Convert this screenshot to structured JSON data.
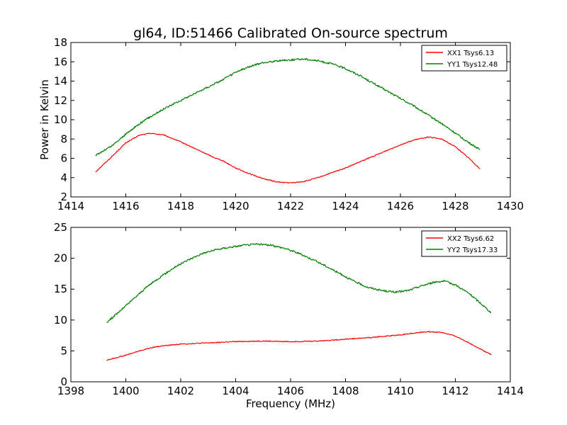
{
  "chart_data": [
    {
      "type": "line",
      "title": "gl64, ID:51466 Calibrated On-source spectrum",
      "xlabel": "",
      "ylabel": "Power in Kelvin",
      "xlim": [
        1414,
        1430
      ],
      "ylim": [
        2,
        18
      ],
      "xticks": [
        1414,
        1416,
        1418,
        1420,
        1422,
        1424,
        1426,
        1428,
        1430
      ],
      "yticks": [
        2,
        4,
        6,
        8,
        10,
        12,
        14,
        16,
        18
      ],
      "grid": false,
      "legend_position": "top-right",
      "series": [
        {
          "name": "XX1 Tsys6.13",
          "color": "#ff0000",
          "x": [
            1414.9,
            1415.5,
            1416.0,
            1416.5,
            1416.9,
            1417.4,
            1418.0,
            1418.6,
            1419.2,
            1419.5,
            1420.0,
            1420.5,
            1421.0,
            1421.5,
            1422.0,
            1422.5,
            1423.0,
            1423.5,
            1424.0,
            1424.5,
            1425.0,
            1425.5,
            1426.0,
            1426.5,
            1427.0,
            1427.5,
            1428.0,
            1428.5,
            1428.9
          ],
          "y": [
            4.6,
            6.2,
            7.6,
            8.4,
            8.6,
            8.4,
            7.7,
            6.9,
            6.1,
            5.8,
            5.0,
            4.4,
            3.9,
            3.55,
            3.45,
            3.6,
            4.0,
            4.5,
            5.0,
            5.6,
            6.2,
            6.8,
            7.4,
            7.9,
            8.2,
            8.0,
            7.2,
            6.0,
            4.9
          ]
        },
        {
          "name": "YY1 Tsys12.48",
          "color": "#008000",
          "x": [
            1414.9,
            1415.5,
            1416.0,
            1416.5,
            1417.0,
            1417.5,
            1418.0,
            1418.5,
            1419.0,
            1419.5,
            1420.0,
            1420.5,
            1421.0,
            1421.5,
            1422.0,
            1422.5,
            1423.0,
            1423.5,
            1424.0,
            1424.5,
            1425.0,
            1425.5,
            1426.0,
            1426.5,
            1427.0,
            1427.5,
            1428.0,
            1428.5,
            1428.9
          ],
          "y": [
            6.3,
            7.3,
            8.5,
            9.6,
            10.5,
            11.3,
            12.0,
            12.7,
            13.4,
            14.1,
            14.9,
            15.5,
            15.9,
            16.1,
            16.2,
            16.3,
            16.1,
            15.8,
            15.3,
            14.6,
            13.8,
            13.0,
            12.2,
            11.4,
            10.5,
            9.6,
            8.6,
            7.6,
            6.9
          ]
        }
      ]
    },
    {
      "type": "line",
      "title": "",
      "xlabel": "Frequency (MHz)",
      "ylabel": "",
      "xlim": [
        1398,
        1414
      ],
      "ylim": [
        0,
        25
      ],
      "xticks": [
        1398,
        1400,
        1402,
        1404,
        1406,
        1408,
        1410,
        1412,
        1414
      ],
      "yticks": [
        0,
        5,
        10,
        15,
        20,
        25
      ],
      "grid": false,
      "legend_position": "top-right",
      "series": [
        {
          "name": "XX2 Tsys6.62",
          "color": "#ff0000",
          "x": [
            1399.3,
            1400.0,
            1400.5,
            1401.0,
            1401.5,
            1402.0,
            1403.0,
            1404.0,
            1405.0,
            1406.0,
            1407.0,
            1408.0,
            1409.0,
            1410.0,
            1410.5,
            1411.0,
            1411.5,
            1412.0,
            1412.5,
            1413.0,
            1413.3
          ],
          "y": [
            3.5,
            4.3,
            5.0,
            5.6,
            5.9,
            6.1,
            6.3,
            6.5,
            6.6,
            6.5,
            6.6,
            6.9,
            7.2,
            7.6,
            7.9,
            8.1,
            8.0,
            7.4,
            6.3,
            5.1,
            4.4
          ]
        },
        {
          "name": "YY2 Tsys17.33",
          "color": "#008000",
          "x": [
            1399.3,
            1399.8,
            1400.3,
            1400.8,
            1401.3,
            1401.8,
            1402.3,
            1402.8,
            1403.3,
            1403.8,
            1404.3,
            1404.8,
            1405.3,
            1405.8,
            1406.3,
            1406.8,
            1407.3,
            1407.8,
            1408.3,
            1408.8,
            1409.3,
            1409.8,
            1410.3,
            1410.8,
            1411.3,
            1411.6,
            1412.0,
            1412.5,
            1413.0,
            1413.3
          ],
          "y": [
            9.6,
            11.5,
            13.5,
            15.5,
            17.1,
            18.6,
            19.8,
            20.8,
            21.4,
            21.8,
            22.1,
            22.3,
            22.1,
            21.6,
            20.8,
            19.8,
            18.7,
            17.5,
            16.3,
            15.3,
            14.8,
            14.5,
            14.8,
            15.6,
            16.2,
            16.3,
            15.7,
            14.3,
            12.4,
            11.2
          ]
        }
      ]
    }
  ]
}
